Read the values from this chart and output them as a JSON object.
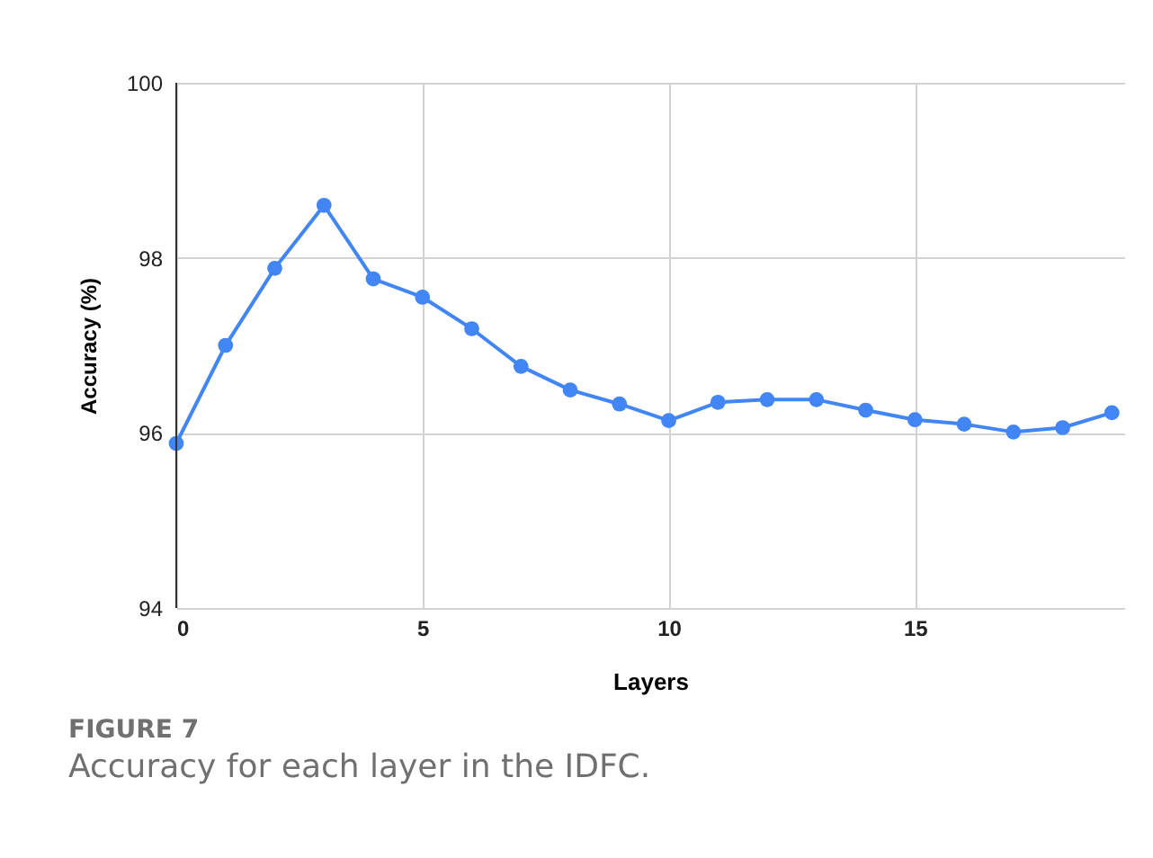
{
  "chart_data": {
    "type": "line",
    "xlabel": "Layers",
    "ylabel": "Accuracy (%)",
    "x": [
      0,
      1,
      2,
      3,
      4,
      5,
      6,
      7,
      8,
      9,
      10,
      11,
      12,
      13,
      14,
      15,
      16,
      17,
      18,
      19
    ],
    "series": [
      {
        "color": "#4285f4",
        "values": [
          95.88,
          97.0,
          97.88,
          98.6,
          97.76,
          97.55,
          97.19,
          96.76,
          96.49,
          96.33,
          96.14,
          96.35,
          96.38,
          96.38,
          96.26,
          96.15,
          96.1,
          96.01,
          96.06,
          96.23
        ]
      }
    ],
    "xlim": [
      0,
      19.25
    ],
    "xticks": [
      0,
      5,
      10,
      15
    ],
    "ylim": [
      94,
      100
    ],
    "yticks": [
      94,
      96,
      98,
      100
    ],
    "grid": true,
    "marker": "circle",
    "line_style": "solid",
    "legend": false,
    "annotations": [
      "FIGURE 7",
      "Accuracy for each layer in the IDFC."
    ]
  }
}
